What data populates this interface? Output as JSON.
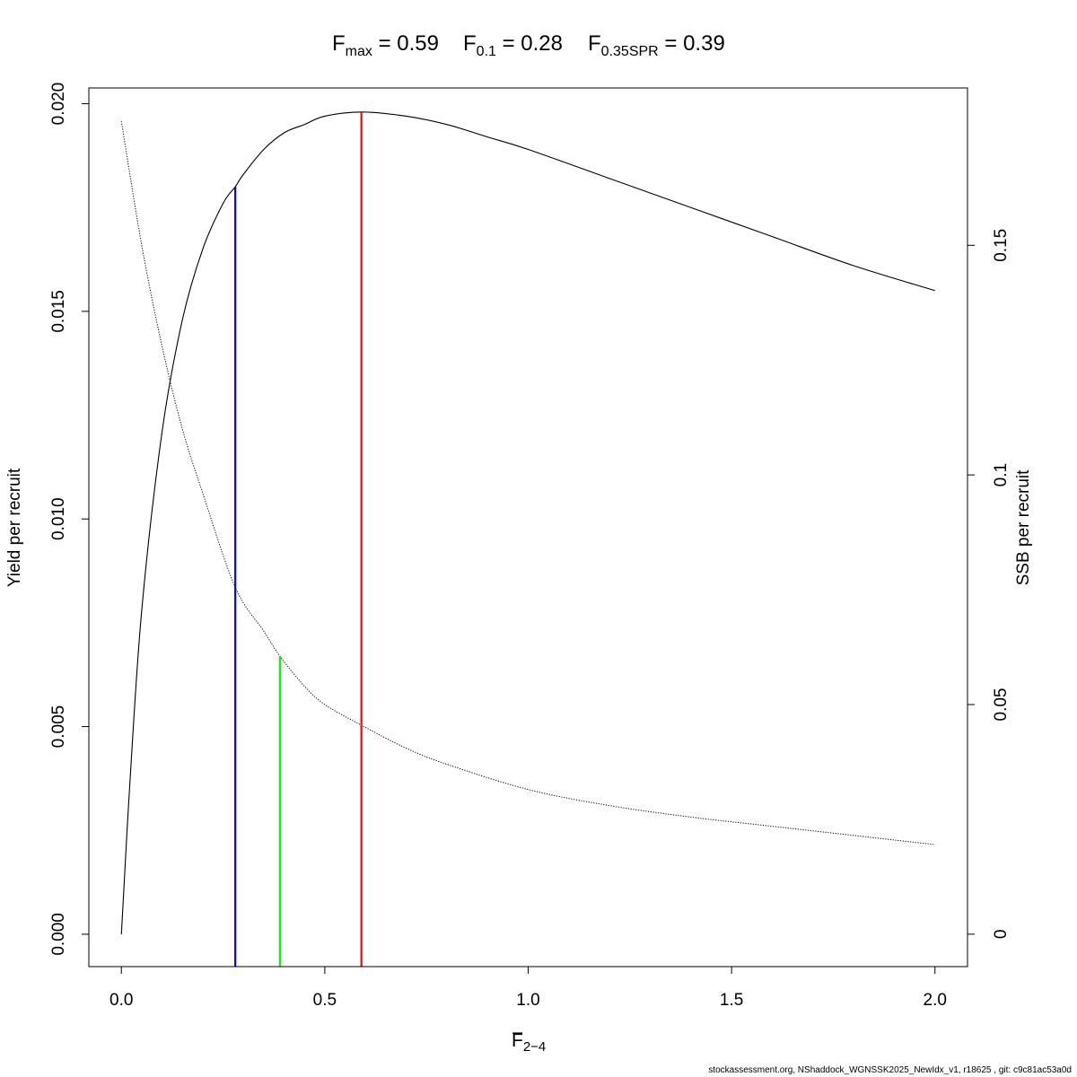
{
  "chart_data": {
    "type": "line",
    "title": {
      "fmax": {
        "main": "F",
        "sub": "max",
        "value": "0.59"
      },
      "f01": {
        "main": "F",
        "sub": "0.1",
        "value": "0.28"
      },
      "fspr": {
        "main": "F",
        "sub": "0.35SPR",
        "value": "0.39"
      }
    },
    "xlabel": {
      "main": "F",
      "sub": "2−4"
    },
    "ylabel_left": "Yield per recruit",
    "ylabel_right": "SSB per recruit",
    "xlim": [
      -0.08,
      2.08
    ],
    "ylim_left": [
      -0.00078,
      0.02038
    ],
    "ylim_right": [
      -0.00706,
      0.18426
    ],
    "x_ticks": [
      0,
      0.5,
      1,
      1.5,
      2
    ],
    "x_tick_labels": [
      "0.0",
      "0.5",
      "1.0",
      "1.5",
      "2.0"
    ],
    "y_left_ticks": [
      0,
      0.005,
      0.01,
      0.015,
      0.02
    ],
    "y_left_tick_labels": [
      "0.000",
      "0.005",
      "0.010",
      "0.015",
      "0.020"
    ],
    "y_right_ticks": [
      0,
      0.05,
      0.1,
      0.15
    ],
    "y_right_tick_labels": [
      "0",
      "0.05",
      "0.1",
      "0.15"
    ],
    "series": [
      {
        "name": "Yield per recruit",
        "axis": "left",
        "style": "solid",
        "color": "#000000",
        "x": [
          0,
          0.02,
          0.05,
          0.1,
          0.15,
          0.2,
          0.25,
          0.28,
          0.3,
          0.35,
          0.4,
          0.45,
          0.5,
          0.59,
          0.7,
          0.8,
          0.9,
          1.0,
          1.2,
          1.4,
          1.6,
          1.8,
          2.0
        ],
        "y": [
          0,
          0.0035,
          0.0078,
          0.0121,
          0.0148,
          0.0165,
          0.0176,
          0.018,
          0.0183,
          0.0189,
          0.0193,
          0.0195,
          0.0197,
          0.0198,
          0.0197,
          0.0195,
          0.0192,
          0.0189,
          0.0182,
          0.0175,
          0.0168,
          0.0161,
          0.0155
        ]
      },
      {
        "name": "SSB per recruit",
        "axis": "right",
        "style": "dotted",
        "color": "#000000",
        "x": [
          0,
          0.05,
          0.1,
          0.15,
          0.2,
          0.28,
          0.35,
          0.39,
          0.45,
          0.5,
          0.59,
          0.7,
          0.8,
          1.0,
          1.2,
          1.4,
          1.6,
          1.8,
          2.0
        ],
        "y": [
          0.177,
          0.15,
          0.128,
          0.11,
          0.096,
          0.0755,
          0.066,
          0.0605,
          0.054,
          0.05,
          0.0455,
          0.0405,
          0.037,
          0.0315,
          0.028,
          0.0255,
          0.0235,
          0.0215,
          0.0195
        ]
      }
    ],
    "reference_lines": [
      {
        "name": "F0.1",
        "x": 0.28,
        "y_top": 0.018,
        "axis": "left",
        "color": "#0000ff"
      },
      {
        "name": "F0.35SPR",
        "x": 0.39,
        "y_top": 0.0605,
        "axis": "right",
        "color": "#00ff00"
      },
      {
        "name": "Fmax",
        "x": 0.59,
        "y_top": 0.0198,
        "axis": "left",
        "color": "#ff0000"
      }
    ],
    "grid": false,
    "legend": "none"
  },
  "footer": "stockassessment.org, NShaddock_WGNSSK2025_NewIdx_v1, r18625 , git: c9c81ac53a0d"
}
